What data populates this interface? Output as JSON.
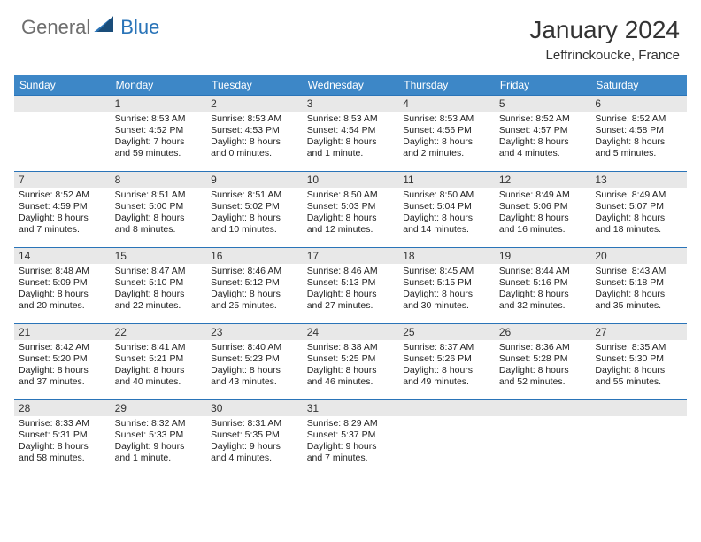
{
  "brand": {
    "part1": "General",
    "part2": "Blue"
  },
  "title": "January 2024",
  "location": "Leffrinckoucke, France",
  "colors": {
    "header_bg": "#3d87c7",
    "header_text": "#ffffff",
    "divider": "#2a74b8",
    "daynum_bg": "#e8e8e8",
    "brand_gray": "#6e6e6e",
    "brand_blue": "#2a74b8"
  },
  "day_headers": [
    "Sunday",
    "Monday",
    "Tuesday",
    "Wednesday",
    "Thursday",
    "Friday",
    "Saturday"
  ],
  "weeks": [
    [
      {
        "n": "",
        "sr": "",
        "ss": "",
        "dl": ""
      },
      {
        "n": "1",
        "sr": "Sunrise: 8:53 AM",
        "ss": "Sunset: 4:52 PM",
        "dl": "Daylight: 7 hours and 59 minutes."
      },
      {
        "n": "2",
        "sr": "Sunrise: 8:53 AM",
        "ss": "Sunset: 4:53 PM",
        "dl": "Daylight: 8 hours and 0 minutes."
      },
      {
        "n": "3",
        "sr": "Sunrise: 8:53 AM",
        "ss": "Sunset: 4:54 PM",
        "dl": "Daylight: 8 hours and 1 minute."
      },
      {
        "n": "4",
        "sr": "Sunrise: 8:53 AM",
        "ss": "Sunset: 4:56 PM",
        "dl": "Daylight: 8 hours and 2 minutes."
      },
      {
        "n": "5",
        "sr": "Sunrise: 8:52 AM",
        "ss": "Sunset: 4:57 PM",
        "dl": "Daylight: 8 hours and 4 minutes."
      },
      {
        "n": "6",
        "sr": "Sunrise: 8:52 AM",
        "ss": "Sunset: 4:58 PM",
        "dl": "Daylight: 8 hours and 5 minutes."
      }
    ],
    [
      {
        "n": "7",
        "sr": "Sunrise: 8:52 AM",
        "ss": "Sunset: 4:59 PM",
        "dl": "Daylight: 8 hours and 7 minutes."
      },
      {
        "n": "8",
        "sr": "Sunrise: 8:51 AM",
        "ss": "Sunset: 5:00 PM",
        "dl": "Daylight: 8 hours and 8 minutes."
      },
      {
        "n": "9",
        "sr": "Sunrise: 8:51 AM",
        "ss": "Sunset: 5:02 PM",
        "dl": "Daylight: 8 hours and 10 minutes."
      },
      {
        "n": "10",
        "sr": "Sunrise: 8:50 AM",
        "ss": "Sunset: 5:03 PM",
        "dl": "Daylight: 8 hours and 12 minutes."
      },
      {
        "n": "11",
        "sr": "Sunrise: 8:50 AM",
        "ss": "Sunset: 5:04 PM",
        "dl": "Daylight: 8 hours and 14 minutes."
      },
      {
        "n": "12",
        "sr": "Sunrise: 8:49 AM",
        "ss": "Sunset: 5:06 PM",
        "dl": "Daylight: 8 hours and 16 minutes."
      },
      {
        "n": "13",
        "sr": "Sunrise: 8:49 AM",
        "ss": "Sunset: 5:07 PM",
        "dl": "Daylight: 8 hours and 18 minutes."
      }
    ],
    [
      {
        "n": "14",
        "sr": "Sunrise: 8:48 AM",
        "ss": "Sunset: 5:09 PM",
        "dl": "Daylight: 8 hours and 20 minutes."
      },
      {
        "n": "15",
        "sr": "Sunrise: 8:47 AM",
        "ss": "Sunset: 5:10 PM",
        "dl": "Daylight: 8 hours and 22 minutes."
      },
      {
        "n": "16",
        "sr": "Sunrise: 8:46 AM",
        "ss": "Sunset: 5:12 PM",
        "dl": "Daylight: 8 hours and 25 minutes."
      },
      {
        "n": "17",
        "sr": "Sunrise: 8:46 AM",
        "ss": "Sunset: 5:13 PM",
        "dl": "Daylight: 8 hours and 27 minutes."
      },
      {
        "n": "18",
        "sr": "Sunrise: 8:45 AM",
        "ss": "Sunset: 5:15 PM",
        "dl": "Daylight: 8 hours and 30 minutes."
      },
      {
        "n": "19",
        "sr": "Sunrise: 8:44 AM",
        "ss": "Sunset: 5:16 PM",
        "dl": "Daylight: 8 hours and 32 minutes."
      },
      {
        "n": "20",
        "sr": "Sunrise: 8:43 AM",
        "ss": "Sunset: 5:18 PM",
        "dl": "Daylight: 8 hours and 35 minutes."
      }
    ],
    [
      {
        "n": "21",
        "sr": "Sunrise: 8:42 AM",
        "ss": "Sunset: 5:20 PM",
        "dl": "Daylight: 8 hours and 37 minutes."
      },
      {
        "n": "22",
        "sr": "Sunrise: 8:41 AM",
        "ss": "Sunset: 5:21 PM",
        "dl": "Daylight: 8 hours and 40 minutes."
      },
      {
        "n": "23",
        "sr": "Sunrise: 8:40 AM",
        "ss": "Sunset: 5:23 PM",
        "dl": "Daylight: 8 hours and 43 minutes."
      },
      {
        "n": "24",
        "sr": "Sunrise: 8:38 AM",
        "ss": "Sunset: 5:25 PM",
        "dl": "Daylight: 8 hours and 46 minutes."
      },
      {
        "n": "25",
        "sr": "Sunrise: 8:37 AM",
        "ss": "Sunset: 5:26 PM",
        "dl": "Daylight: 8 hours and 49 minutes."
      },
      {
        "n": "26",
        "sr": "Sunrise: 8:36 AM",
        "ss": "Sunset: 5:28 PM",
        "dl": "Daylight: 8 hours and 52 minutes."
      },
      {
        "n": "27",
        "sr": "Sunrise: 8:35 AM",
        "ss": "Sunset: 5:30 PM",
        "dl": "Daylight: 8 hours and 55 minutes."
      }
    ],
    [
      {
        "n": "28",
        "sr": "Sunrise: 8:33 AM",
        "ss": "Sunset: 5:31 PM",
        "dl": "Daylight: 8 hours and 58 minutes."
      },
      {
        "n": "29",
        "sr": "Sunrise: 8:32 AM",
        "ss": "Sunset: 5:33 PM",
        "dl": "Daylight: 9 hours and 1 minute."
      },
      {
        "n": "30",
        "sr": "Sunrise: 8:31 AM",
        "ss": "Sunset: 5:35 PM",
        "dl": "Daylight: 9 hours and 4 minutes."
      },
      {
        "n": "31",
        "sr": "Sunrise: 8:29 AM",
        "ss": "Sunset: 5:37 PM",
        "dl": "Daylight: 9 hours and 7 minutes."
      },
      {
        "n": "",
        "sr": "",
        "ss": "",
        "dl": ""
      },
      {
        "n": "",
        "sr": "",
        "ss": "",
        "dl": ""
      },
      {
        "n": "",
        "sr": "",
        "ss": "",
        "dl": ""
      }
    ]
  ]
}
